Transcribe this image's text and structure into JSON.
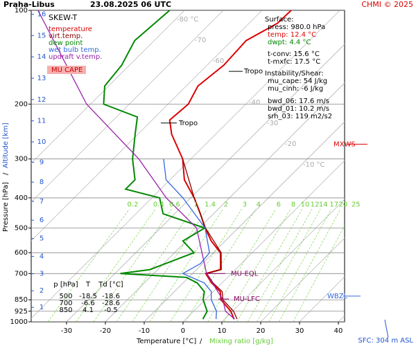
{
  "chart_data": {
    "type": "skewt",
    "title": "Praha-Libus",
    "subtitle": "23.08.2025 06 UTC",
    "credit": "CHMI © 2025",
    "diagram_label": "SKEW-T",
    "x_label": "Temperature [°C]",
    "x_label_separator": "/",
    "x_label2": "Mixing ratio [g/kg]",
    "y_label": "Pressure [hPa]",
    "y_label_separator": "/",
    "y_label2": "Altitude [km]",
    "surface_elevation": "SFC: 304 m ASL",
    "xlim": [
      -39.1,
      41.6
    ],
    "ylim": [
      1000,
      100
    ],
    "log_y": true,
    "skewed": true,
    "xticks": [
      -30,
      -20,
      -10,
      0,
      10,
      20,
      30,
      40
    ],
    "yticks": [
      100,
      200,
      300,
      400,
      500,
      600,
      700,
      850,
      925,
      1000
    ],
    "altitude_ticks": [
      1,
      2,
      3,
      4,
      5,
      6,
      7,
      8,
      9,
      10,
      11,
      12,
      13,
      14,
      15,
      16
    ],
    "altitude_color": "#2255cc",
    "isotherm_labels": [
      {
        "value": -80,
        "label": "-80 °C"
      },
      {
        "value": -70,
        "label": "-70"
      },
      {
        "value": -60,
        "label": "-60"
      },
      {
        "value": -40,
        "label": "-40"
      },
      {
        "value": -30,
        "label": "-30"
      },
      {
        "value": -20,
        "label": "-20"
      },
      {
        "value": -10,
        "label": "-10 °C"
      }
    ],
    "mixing_ratio_ticks": [
      0.2,
      0.4,
      0.6,
      1,
      1.4,
      2,
      3,
      4,
      6,
      8,
      10,
      12,
      14,
      17,
      20,
      25
    ],
    "mixing_ratio_color": "#66cc33",
    "grid": true,
    "series": [
      {
        "name": "temperature",
        "color": "#dd0000",
        "pressure": [
          980,
          925,
          850,
          800,
          750,
          700,
          680,
          600,
          550,
          500,
          450,
          400,
          350,
          300,
          250,
          225,
          200,
          175,
          150,
          125,
          110,
          100
        ],
        "values": [
          12.4,
          9.6,
          4.1,
          1.8,
          -2.7,
          -6.6,
          -3.8,
          -8.2,
          -13.6,
          -18.5,
          -23.4,
          -29.1,
          -36.3,
          -42.1,
          -51.3,
          -55.5,
          -54.8,
          -57,
          -55.7,
          -56.3,
          -52.7,
          -52.5
        ]
      },
      {
        "name": "virt.temp.",
        "color": "#880000",
        "pressure": [
          980,
          925,
          850,
          800,
          750,
          700,
          680,
          600,
          500,
          400,
          300
        ],
        "values": [
          13.2,
          10.3,
          4.6,
          2.3,
          -2.3,
          -6.3,
          -3.6,
          -8,
          -18.4,
          -29.1,
          -42.1
        ]
      },
      {
        "name": "dew point",
        "color": "#008800",
        "pressure": [
          980,
          925,
          850,
          800,
          750,
          720,
          700,
          680,
          650,
          600,
          550,
          500,
          450,
          400,
          375,
          350,
          300,
          250,
          220,
          200,
          175,
          150,
          125,
          100
        ],
        "values": [
          4.4,
          3.5,
          -0.5,
          -2.3,
          -6.4,
          -10.6,
          -28.6,
          -22,
          -19.5,
          -15,
          -20.9,
          -18.6,
          -33,
          -38,
          -49,
          -49,
          -55,
          -60.7,
          -64.6,
          -76.6,
          -81,
          -82,
          -85,
          -83.8
        ]
      },
      {
        "name": "wet bulb temp.",
        "color": "#3366dd",
        "pressure": [
          980,
          925,
          850,
          800,
          750,
          700,
          650,
          600,
          500,
          400,
          350,
          300
        ],
        "values": [
          7.8,
          5.9,
          1.6,
          -0.5,
          -4.6,
          -12.5,
          -10.5,
          -11,
          -18.5,
          -32,
          -41,
          -47
        ]
      },
      {
        "name": "updraft v.temp.",
        "color": "#9922aa",
        "pressure": [
          980,
          925,
          850,
          700,
          500,
          400,
          300,
          200,
          100
        ],
        "values": [
          12.6,
          8.2,
          4.6,
          -6.4,
          -20.7,
          -36.3,
          -53.4,
          -81,
          -117.7
        ]
      }
    ],
    "surface": [
      {
        "text": "Surface:",
        "color": "#000000"
      },
      {
        "text": "press: 980.0 hPa",
        "color": "#000000"
      },
      {
        "text": "temp: 12.4 °C",
        "color": "#dd0000"
      },
      {
        "text": "dwpt: 4.4 °C",
        "color": "#008800"
      },
      {
        "text": "t-conv: 15.6 °C",
        "color": "#000000"
      },
      {
        "text": "t-mxfc: 17.5 °C",
        "color": "#000000"
      }
    ],
    "instability": [
      "Instability/Shear:",
      "mu_cape: 54 J/kg",
      "mu_cinh: -6 J/kg",
      "bwd_06: 17.6 m/s",
      "bwd_01: 10.2 m/s",
      "srh_03: 119 m2/s2"
    ],
    "cape_label": "MU CAPE",
    "table": {
      "header": [
        "p [hPa]",
        "T",
        "Td [°C]"
      ],
      "rows": [
        [
          "500",
          "-18.5",
          "-18.6"
        ],
        [
          "700",
          "-6.6",
          "-28.6"
        ],
        [
          "850",
          "4.1",
          "-0.5"
        ]
      ]
    },
    "annotations": [
      {
        "label": "Tropo",
        "pressure": 230,
        "color": "#000000"
      },
      {
        "label": "Tropo",
        "pressure": 157,
        "color": "#000000"
      },
      {
        "label": "MU-EQL",
        "pressure": 700,
        "color": "#880066"
      },
      {
        "label": "MU-LFC",
        "pressure": 845,
        "color": "#880066"
      },
      {
        "label": "MXWS",
        "pressure": 269,
        "color": "#dd0000"
      },
      {
        "label": "WBZL",
        "pressure": 827,
        "color": "#3366dd"
      }
    ]
  }
}
